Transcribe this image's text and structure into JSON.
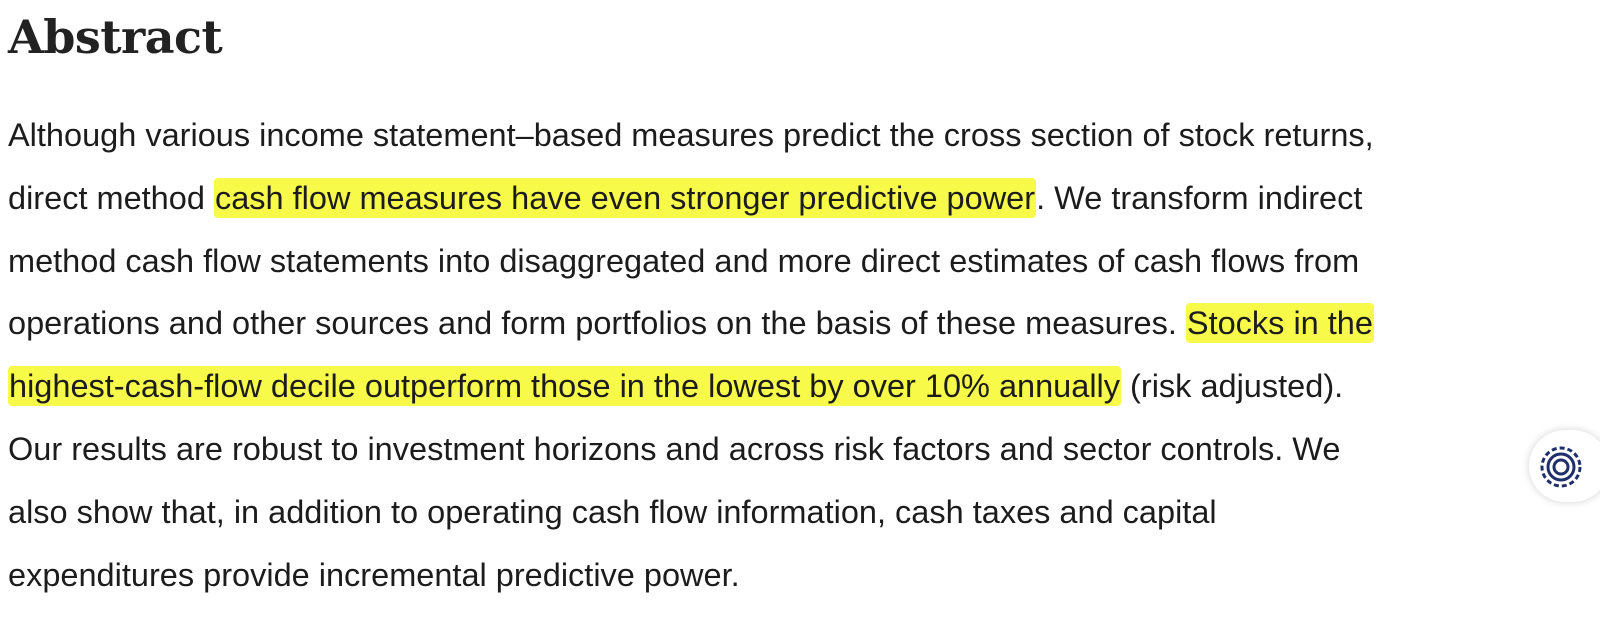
{
  "heading": "Abstract",
  "abstract": {
    "line1": "Although various income statement–based measures predict the cross section of stock returns,",
    "line2_pre": "direct method ",
    "line2_hl": "cash flow measures have even stronger predictive power",
    "line2_post": ". We transform indirect",
    "line3": "method cash flow statements into disaggregated and more direct estimates of cash flows from",
    "line4_pre": "operations and other sources and form portfolios on the basis of these measures. ",
    "line4_hl": "Stocks in the",
    "line5_hl": "highest-cash-flow decile outperform those in the lowest by over 10% annually",
    "line5_post": " (risk adjusted).",
    "line6": "Our results are robust to investment horizons and across risk factors and sector controls. We",
    "line7": "also show that, in addition to operating cash flow information, cash taxes and capital",
    "line8": "expenditures provide incremental predictive power."
  },
  "colors": {
    "highlight": "#f8fa4a",
    "widget_icon": "#1f2f6b"
  },
  "widget": {
    "icon": "circular-logo-icon"
  }
}
